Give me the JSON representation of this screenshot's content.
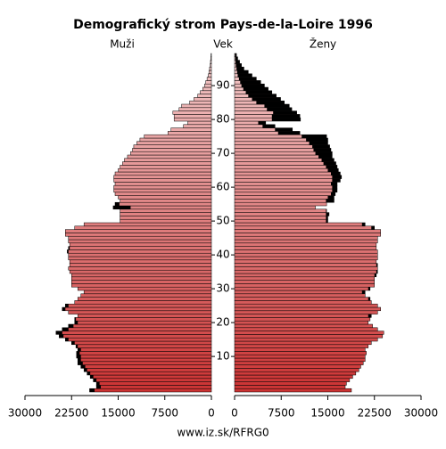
{
  "chart_data": {
    "type": "pyramid",
    "title": "Demografický strom Pays-de-la-Loire 1996",
    "axis_label": "Vek",
    "source": "www.iz.sk/RFRG0",
    "ages": [
      0,
      1,
      2,
      3,
      4,
      5,
      6,
      7,
      8,
      9,
      10,
      11,
      12,
      13,
      14,
      15,
      16,
      17,
      18,
      19,
      20,
      21,
      22,
      23,
      24,
      25,
      26,
      27,
      28,
      29,
      30,
      31,
      32,
      33,
      34,
      35,
      36,
      37,
      38,
      39,
      40,
      41,
      42,
      43,
      44,
      45,
      46,
      47,
      48,
      49,
      50,
      51,
      52,
      53,
      54,
      55,
      56,
      57,
      58,
      59,
      60,
      61,
      62,
      63,
      64,
      65,
      66,
      67,
      68,
      69,
      70,
      71,
      72,
      73,
      74,
      75,
      76,
      77,
      78,
      79,
      80,
      81,
      82,
      83,
      84,
      85,
      86,
      87,
      88,
      89,
      90,
      91,
      92,
      93,
      94,
      95,
      96,
      97,
      98,
      99
    ],
    "ylim": [
      -0.5,
      100.5
    ],
    "yticks": [
      10,
      20,
      30,
      40,
      50,
      60,
      70,
      80,
      90
    ],
    "xlim": [
      0,
      30000
    ],
    "xticks": [
      0,
      7500,
      15000,
      22500,
      30000
    ],
    "color_young": "#cc3333",
    "color_old": "#f2caca",
    "excess_color": "#000000",
    "series": [
      {
        "name": "Muži",
        "side": "left",
        "values": [
          19600,
          18500,
          18500,
          19000,
          19500,
          20000,
          20500,
          21000,
          21500,
          21500,
          21700,
          21700,
          21500,
          21800,
          22500,
          23500,
          24500,
          25000,
          24000,
          23000,
          22000,
          22000,
          21500,
          23000,
          24000,
          23500,
          22000,
          21500,
          21000,
          20500,
          21500,
          22500,
          22500,
          22500,
          22500,
          22800,
          23000,
          22800,
          22800,
          23000,
          23000,
          23200,
          23000,
          22800,
          23000,
          23000,
          23500,
          23500,
          22000,
          20500,
          14700,
          14700,
          14700,
          14700,
          15800,
          15500,
          14700,
          15000,
          15500,
          15700,
          15700,
          15500,
          15700,
          15700,
          15500,
          15000,
          14700,
          14300,
          14000,
          13500,
          13000,
          12700,
          12500,
          12000,
          11500,
          10800,
          7000,
          6500,
          4500,
          3800,
          6000,
          6000,
          6200,
          5200,
          4800,
          3500,
          2800,
          2200,
          1800,
          1400,
          1100,
          900,
          700,
          500,
          400,
          300,
          200,
          150,
          100,
          60
        ]
      },
      {
        "name": "Ženy",
        "side": "right",
        "values": [
          18800,
          17800,
          18000,
          18500,
          19000,
          19500,
          20000,
          20300,
          20700,
          21000,
          21000,
          21200,
          21000,
          21500,
          22000,
          23000,
          23800,
          24000,
          23000,
          22200,
          21500,
          21800,
          22000,
          23000,
          23500,
          23000,
          22000,
          21800,
          21000,
          21000,
          21800,
          22500,
          22500,
          22500,
          22800,
          23000,
          23000,
          23000,
          22800,
          23000,
          23000,
          23000,
          22800,
          22800,
          23000,
          23000,
          23500,
          23500,
          22500,
          21000,
          15000,
          15000,
          15200,
          14800,
          13000,
          14800,
          16000,
          16000,
          16200,
          16500,
          16500,
          16500,
          17000,
          17200,
          17000,
          16700,
          16500,
          16300,
          16000,
          15700,
          15700,
          15500,
          15300,
          15000,
          15000,
          14800,
          10500,
          9300,
          6500,
          5000,
          10600,
          10500,
          10000,
          9200,
          8800,
          8000,
          7400,
          6700,
          6000,
          5400,
          4800,
          4200,
          3500,
          2800,
          2200,
          1500,
          1100,
          800,
          500,
          300
        ]
      }
    ]
  }
}
